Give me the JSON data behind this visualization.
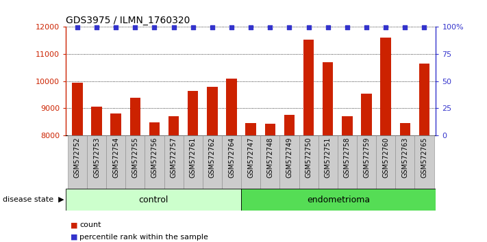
{
  "title": "GDS3975 / ILMN_1760320",
  "samples": [
    "GSM572752",
    "GSM572753",
    "GSM572754",
    "GSM572755",
    "GSM572756",
    "GSM572757",
    "GSM572761",
    "GSM572762",
    "GSM572764",
    "GSM572747",
    "GSM572748",
    "GSM572749",
    "GSM572750",
    "GSM572751",
    "GSM572758",
    "GSM572759",
    "GSM572760",
    "GSM572763",
    "GSM572765"
  ],
  "values": [
    9940,
    9050,
    8820,
    9390,
    8490,
    8710,
    9630,
    9790,
    10080,
    8460,
    8430,
    8760,
    11520,
    10690,
    8710,
    9530,
    11590,
    8470,
    10640
  ],
  "control_count": 9,
  "endometrioma_count": 10,
  "bar_color": "#cc2200",
  "blue_color": "#3333cc",
  "ymin": 8000,
  "ymax": 12000,
  "yticks": [
    8000,
    9000,
    10000,
    11000,
    12000
  ],
  "right_yticks_labels": [
    "0",
    "25",
    "50",
    "75",
    "100%"
  ],
  "right_yvals": [
    8000,
    9000,
    10000,
    11000,
    12000
  ],
  "control_label": "control",
  "endo_label": "endometrioma",
  "disease_state_label": "disease state",
  "legend_count_label": "count",
  "legend_pct_label": "percentile rank within the sample",
  "control_bg": "#ccffcc",
  "endo_bg": "#55dd55",
  "sample_bg": "#cccccc",
  "bar_width": 0.55
}
